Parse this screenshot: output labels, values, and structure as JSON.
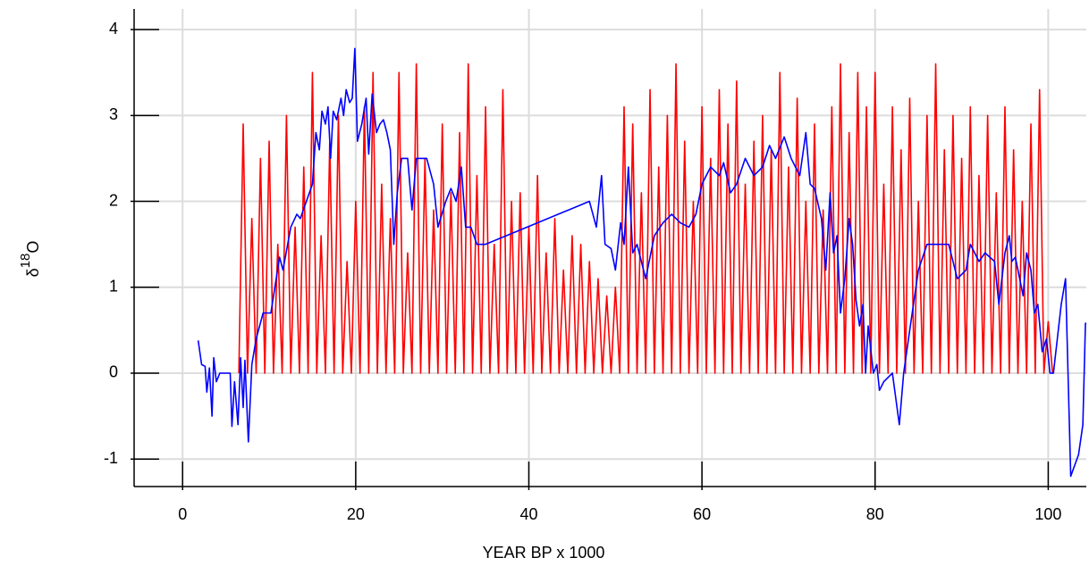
{
  "chart_data": {
    "type": "line",
    "xlabel": "YEAR BP x 1000",
    "ylabel": [
      "δ",
      "18",
      "O"
    ],
    "xlim": [
      -5.6,
      104.4
    ],
    "ylim": [
      -1.32,
      4.24
    ],
    "xticks": [
      0,
      20,
      40,
      60,
      80,
      100
    ],
    "yticks": [
      -1,
      0,
      1,
      2,
      3,
      4
    ],
    "grid": true,
    "series": [
      {
        "color": "#ff0000",
        "x": [
          6.5,
          7,
          7.5,
          8,
          8.5,
          9,
          9.5,
          10,
          10.5,
          11,
          11.5,
          12,
          12.5,
          13,
          13.5,
          14,
          14.5,
          15,
          15.5,
          16,
          16.5,
          17,
          17.5,
          18,
          18.5,
          19,
          19.5,
          20,
          20.5,
          21,
          21.5,
          22,
          22.5,
          23,
          23.5,
          24,
          24.5,
          25,
          25.5,
          26,
          26.5,
          27,
          27.5,
          28,
          28.5,
          29,
          29.5,
          30,
          30.5,
          31,
          31.5,
          32,
          32.5,
          33,
          33.5,
          34,
          34.5,
          35,
          35.5,
          36,
          36.5,
          37,
          37.5,
          38,
          38.5,
          39,
          39.5,
          40,
          40.5,
          41,
          41.5,
          42,
          42.5,
          43,
          43.5,
          44,
          44.5,
          45,
          45.5,
          46,
          46.5,
          47,
          47.5,
          48,
          48.5,
          49,
          49.5,
          50,
          50.5,
          51,
          51.5,
          52,
          52.5,
          53,
          53.5,
          54,
          54.5,
          55,
          55.5,
          56,
          56.5,
          57,
          57.5,
          58,
          58.5,
          59,
          59.5,
          60,
          60.5,
          61,
          61.5,
          62,
          62.5,
          63,
          63.5,
          64,
          64.5,
          65,
          65.5,
          66,
          66.5,
          67,
          67.5,
          68,
          68.5,
          69,
          69.5,
          70,
          70.5,
          71,
          71.5,
          72,
          72.5,
          73,
          73.5,
          74,
          74.5,
          75,
          75.5,
          76,
          76.5,
          77,
          77.5,
          78,
          78.5,
          79,
          79.5,
          80,
          80.5,
          81,
          81.5,
          82,
          82.5,
          83,
          83.5,
          84,
          84.5,
          85,
          85.5,
          86,
          86.5,
          87,
          87.5,
          88,
          88.5,
          89,
          89.5,
          90,
          90.5,
          91,
          91.5,
          92,
          92.5,
          93,
          93.5,
          94,
          94.5,
          95,
          95.5,
          96,
          96.5,
          97,
          97.5,
          98,
          98.5,
          99,
          99.5,
          100,
          100.5
        ],
        "values": [
          0,
          2.9,
          0,
          1.8,
          0,
          2.5,
          0,
          2.7,
          0,
          1.5,
          0,
          3.0,
          0,
          1.7,
          0,
          2.4,
          0,
          3.5,
          0,
          1.6,
          0,
          2.7,
          0,
          3.0,
          0,
          1.3,
          0,
          2.0,
          0,
          3.1,
          0,
          3.5,
          0,
          2.2,
          0,
          1.8,
          0,
          3.5,
          0,
          1.4,
          0,
          3.6,
          0,
          2.5,
          0,
          1.9,
          0,
          2.9,
          0,
          2.1,
          0,
          2.8,
          0,
          3.6,
          0,
          2.3,
          0,
          3.1,
          0,
          1.5,
          0,
          3.3,
          0,
          2.0,
          0,
          2.1,
          0,
          1.7,
          0,
          2.3,
          0,
          1.4,
          0,
          1.8,
          0,
          1.2,
          0,
          1.6,
          0,
          1.5,
          0,
          1.3,
          0,
          1.1,
          0,
          0.9,
          0,
          1.0,
          0,
          3.1,
          0,
          2.9,
          0,
          2.1,
          0,
          3.3,
          0,
          2.4,
          0,
          3.0,
          0,
          3.6,
          0,
          2.7,
          0,
          2.0,
          0,
          3.1,
          0,
          2.5,
          0,
          3.3,
          0,
          2.9,
          0,
          3.4,
          0,
          2.2,
          0,
          2.7,
          0,
          3.0,
          0,
          2.6,
          0,
          3.5,
          0,
          2.4,
          0,
          3.2,
          0,
          2.0,
          0,
          2.9,
          0,
          1.9,
          0,
          3.1,
          0,
          3.6,
          0,
          2.8,
          0,
          3.5,
          0,
          3.1,
          0,
          3.5,
          0,
          2.2,
          0,
          3.1,
          0,
          2.6,
          0,
          3.2,
          0,
          2.0,
          0,
          3.0,
          0,
          3.6,
          0,
          2.6,
          0,
          3.0,
          0,
          2.5,
          0,
          3.1,
          0,
          2.3,
          0,
          3.0,
          0,
          2.1,
          0,
          3.1,
          0,
          2.6,
          0,
          2.0,
          0,
          2.9,
          0,
          3.3,
          0,
          0.6,
          0
        ]
      },
      {
        "color": "#0000ff",
        "x": [
          1.8,
          2.2,
          2.6,
          2.8,
          3.1,
          3.4,
          3.6,
          3.9,
          4.3,
          5.5,
          5.7,
          6.0,
          6.4,
          6.7,
          7.0,
          7.2,
          7.6,
          8.0,
          8.5,
          9.3,
          10.2,
          11.2,
          11.6,
          12.5,
          13.2,
          13.6,
          14.3,
          15.0,
          15.4,
          15.8,
          16.1,
          16.5,
          16.8,
          17.1,
          17.4,
          17.8,
          18.3,
          18.6,
          18.9,
          19.3,
          19.6,
          19.9,
          20.2,
          20.7,
          21.2,
          21.5,
          21.9,
          22.4,
          22.8,
          23.2,
          23.6,
          24.0,
          24.4,
          24.8,
          25.3,
          26.0,
          26.5,
          27.0,
          28.2,
          29.0,
          29.5,
          30.4,
          31.0,
          31.6,
          32.2,
          32.7,
          33.3,
          34.0,
          35.0,
          47.0,
          47.8,
          48.4,
          48.8,
          49.5,
          50.0,
          50.6,
          51.0,
          51.5,
          52.0,
          52.5,
          53.5,
          54.5,
          55.5,
          56.5,
          57.5,
          58.5,
          59.3,
          60.0,
          61.0,
          62.0,
          62.5,
          63.3,
          64.0,
          65.0,
          66.0,
          67.0,
          67.8,
          68.5,
          69.5,
          70.3,
          71.3,
          72.0,
          72.5,
          73.0,
          73.8,
          74.3,
          74.8,
          75.2,
          75.6,
          76.0,
          76.5,
          77.0,
          77.4,
          77.8,
          78.2,
          78.6,
          78.9,
          79.2,
          79.8,
          80.2,
          80.5,
          81.0,
          82.0,
          82.8,
          83.3,
          84.0,
          85.0,
          86.0,
          88.5,
          89.5,
          90.5,
          91.0,
          92.0,
          92.7,
          93.8,
          94.3,
          95.0,
          95.5,
          95.8,
          96.2,
          96.7,
          97.1,
          97.5,
          98.0,
          98.4,
          98.8,
          99.3,
          99.8,
          100.2,
          100.6,
          101.5,
          102.0,
          102.6,
          103.5,
          104.0,
          104.3,
          104.4
        ],
        "values": [
          0.38,
          0.1,
          0.08,
          -0.22,
          0.06,
          -0.5,
          0.18,
          -0.1,
          0.0,
          0.0,
          -0.62,
          -0.1,
          -0.6,
          0.18,
          -0.4,
          0.15,
          -0.8,
          0.1,
          0.4,
          0.7,
          0.7,
          1.35,
          1.2,
          1.7,
          1.85,
          1.8,
          2.0,
          2.2,
          2.8,
          2.6,
          3.05,
          2.9,
          3.1,
          2.5,
          3.05,
          2.95,
          3.2,
          3.0,
          3.3,
          3.15,
          3.2,
          3.78,
          2.7,
          2.9,
          3.2,
          2.55,
          3.25,
          2.8,
          2.9,
          2.95,
          2.8,
          2.6,
          1.5,
          2.1,
          2.5,
          2.5,
          1.9,
          2.5,
          2.5,
          2.2,
          1.7,
          2.0,
          2.15,
          2.0,
          2.4,
          1.7,
          1.7,
          1.5,
          1.5,
          2.0,
          1.7,
          2.3,
          1.5,
          1.45,
          1.2,
          1.75,
          1.5,
          2.4,
          1.4,
          1.5,
          1.1,
          1.6,
          1.75,
          1.85,
          1.75,
          1.7,
          1.85,
          2.2,
          2.4,
          2.3,
          2.45,
          2.1,
          2.2,
          2.5,
          2.3,
          2.4,
          2.65,
          2.5,
          2.75,
          2.5,
          2.3,
          2.8,
          2.2,
          2.15,
          1.8,
          1.2,
          2.1,
          1.4,
          1.6,
          0.7,
          1.1,
          1.8,
          1.5,
          0.85,
          0.55,
          0.8,
          0.0,
          0.55,
          0.0,
          0.1,
          -0.2,
          -0.1,
          0.0,
          -0.6,
          0.0,
          0.5,
          1.2,
          1.5,
          1.5,
          1.1,
          1.2,
          1.5,
          1.3,
          1.4,
          1.3,
          0.8,
          1.4,
          1.6,
          1.3,
          1.35,
          1.1,
          0.9,
          1.4,
          1.2,
          0.7,
          0.8,
          0.25,
          0.4,
          0.0,
          0.0,
          0.8,
          1.1,
          -1.2,
          -0.95,
          -0.6,
          0.58,
          0.58
        ]
      }
    ]
  }
}
